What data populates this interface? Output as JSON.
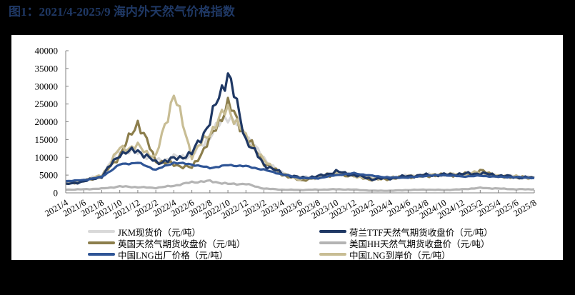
{
  "title": "图1：2021/4-2025/9 海内外天然气价格指数",
  "chart_data": {
    "type": "line",
    "title": "2021/4-2025/9 海内外天然气价格指数",
    "xlabel": "",
    "ylabel": "元/吨",
    "ylim": [
      0,
      40000
    ],
    "yticks": [
      0,
      5000,
      10000,
      15000,
      20000,
      25000,
      30000,
      35000,
      40000
    ],
    "grid": false,
    "legend_position": "bottom",
    "categories": [
      "2021/4",
      "2021/6",
      "2021/8",
      "2021/10",
      "2021/12",
      "2022/2",
      "2022/4",
      "2022/6",
      "2022/8",
      "2022/10",
      "2022/12",
      "2023/2",
      "2023/4",
      "2023/6",
      "2023/8",
      "2023/10",
      "2023/12",
      "2024/2",
      "2024/4",
      "2024/6",
      "2024/8",
      "2024/10",
      "2024/12",
      "2025/2",
      "2025/4",
      "2025/6",
      "2025/8"
    ],
    "series": [
      {
        "name": "JKM现货价（元/吨）",
        "color": "#d9d9d9",
        "values": [
          2600,
          3600,
          4800,
          12000,
          11500,
          9000,
          10000,
          10500,
          16000,
          22000,
          16500,
          9500,
          5500,
          4300,
          4500,
          5500,
          5200,
          4200,
          4300,
          4800,
          5000,
          5100,
          5200,
          5300,
          4800,
          4500,
          4300
        ]
      },
      {
        "name": "荷兰TTF天然气期货收盘价（元/吨）",
        "color": "#1f3864",
        "values": [
          2400,
          3200,
          4600,
          11000,
          12000,
          8500,
          9500,
          11000,
          20000,
          34000,
          15000,
          8000,
          5400,
          4200,
          4600,
          6000,
          5000,
          3900,
          4100,
          4700,
          5000,
          5100,
          5300,
          5500,
          4900,
          4400,
          4200
        ]
      },
      {
        "name": "英国天然气期货收盘价（元/吨）",
        "color": "#8c7e4c",
        "values": [
          2500,
          3300,
          4700,
          10500,
          20000,
          9000,
          8000,
          7000,
          15000,
          25000,
          16000,
          8500,
          5200,
          3500,
          4300,
          5200,
          4800,
          3700,
          4000,
          4500,
          4800,
          5000,
          5100,
          6200,
          4700,
          4400,
          4200
        ]
      },
      {
        "name": "美国HH天然气期货收盘价（元/吨）",
        "color": "#b4b4b4",
        "values": [
          900,
          1000,
          1200,
          1800,
          1600,
          1400,
          2000,
          3000,
          3300,
          2500,
          2500,
          1200,
          900,
          800,
          900,
          1000,
          900,
          600,
          600,
          800,
          900,
          800,
          1000,
          1400,
          1200,
          1000,
          1000
        ]
      },
      {
        "name": "中国LNG出厂价格（元/吨）",
        "color": "#2f5596",
        "values": [
          3300,
          3600,
          4500,
          8000,
          8500,
          6500,
          8500,
          8000,
          7000,
          7800,
          7500,
          6500,
          5200,
          4200,
          4100,
          5000,
          5500,
          4800,
          4300,
          4300,
          4800,
          5000,
          4600,
          4800,
          4500,
          4400,
          4200
        ]
      },
      {
        "name": "中国LNG到岸价（元/吨）",
        "color": "#c8bd94",
        "values": [
          2600,
          3500,
          4800,
          12500,
          13000,
          10000,
          28000,
          10500,
          17000,
          24000,
          15500,
          9000,
          5300,
          3800,
          4400,
          5600,
          4800,
          4000,
          4200,
          4600,
          4900,
          5100,
          5200,
          5800,
          4700,
          4500,
          4200
        ]
      }
    ]
  },
  "axis": {
    "y_labels": [
      "0",
      "5000",
      "10000",
      "15000",
      "20000",
      "25000",
      "30000",
      "35000",
      "40000"
    ],
    "x_labels": [
      "2021/4",
      "2021/6",
      "2021/8",
      "2021/10",
      "2021/12",
      "2022/2",
      "2022/4",
      "2022/6",
      "2022/8",
      "2022/10",
      "2022/12",
      "2023/2",
      "2023/4",
      "2023/6",
      "2023/8",
      "2023/10",
      "2023/12",
      "2024/2",
      "2024/4",
      "2024/6",
      "2024/8",
      "2024/10",
      "2024/12",
      "2025/2",
      "2025/4",
      "2025/6",
      "2025/8"
    ]
  },
  "legend": [
    {
      "label": "JKM现货价（元/吨）",
      "color": "#d9d9d9"
    },
    {
      "label": "荷兰TTF天然气期货收盘价（元/吨）",
      "color": "#1f3864"
    },
    {
      "label": "英国天然气期货收盘价（元/吨）",
      "color": "#8c7e4c"
    },
    {
      "label": "美国HH天然气期货收盘价（元/吨）",
      "color": "#b4b4b4"
    },
    {
      "label": "中国LNG出厂价格（元/吨）",
      "color": "#2f5596"
    },
    {
      "label": "中国LNG到岸价（元/吨）",
      "color": "#c8bd94"
    }
  ],
  "colors": {
    "title": "#1f3864",
    "axis": "#808080",
    "background": "#000000",
    "panel": "#ffffff"
  }
}
